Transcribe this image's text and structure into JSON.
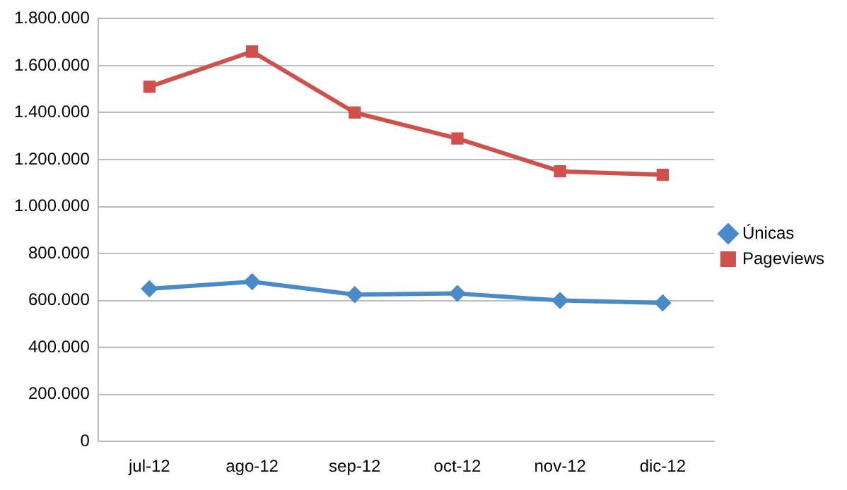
{
  "chart_data": {
    "type": "line",
    "categories": [
      "jul-12",
      "ago-12",
      "sep-12",
      "oct-12",
      "nov-12",
      "dic-12"
    ],
    "series": [
      {
        "name": "Únicas",
        "color": "#4a8ac8",
        "marker": "diamond",
        "values": [
          650000,
          680000,
          625000,
          630000,
          600000,
          590000
        ]
      },
      {
        "name": "Pageviews",
        "color": "#d0504c",
        "marker": "square",
        "values": [
          1510000,
          1660000,
          1400000,
          1290000,
          1150000,
          1135000
        ]
      }
    ],
    "ylim": [
      0,
      1800000
    ],
    "yticks": [
      0,
      {
        "value": 200000,
        "label": "200.000"
      },
      {
        "value": 400000,
        "label": "400.000"
      },
      {
        "value": 600000,
        "label": "600.000"
      },
      {
        "value": 800000,
        "label": "800.000"
      },
      {
        "value": 1000000,
        "label": "1.000.000"
      },
      {
        "value": 1200000,
        "label": "1.200.000"
      },
      {
        "value": 1400000,
        "label": "1.400.000"
      },
      {
        "value": 1600000,
        "label": "1.600.000"
      },
      {
        "value": 1800000,
        "label": "1.800.000"
      }
    ],
    "grid": "y",
    "legend": "right"
  }
}
